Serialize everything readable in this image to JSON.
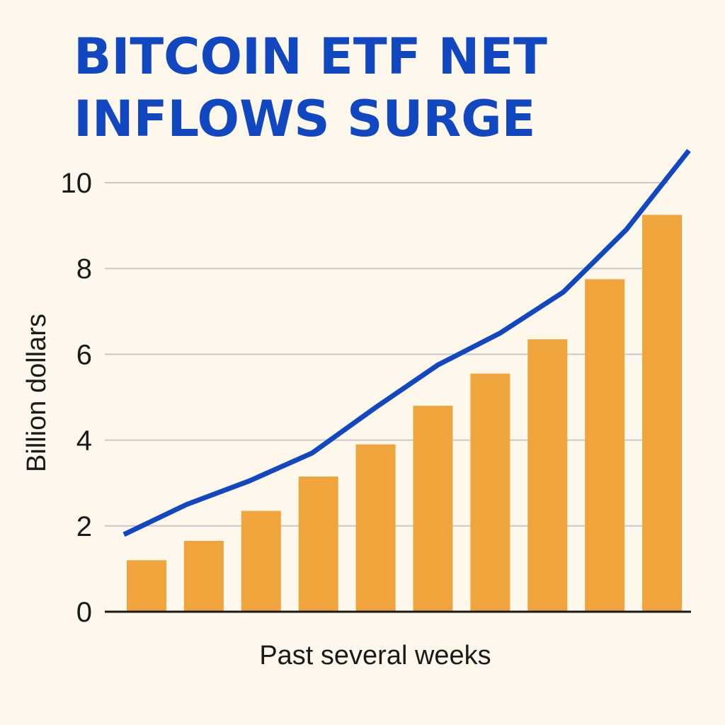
{
  "colors": {
    "background": "#FDF7EC",
    "title": "#1147C0",
    "bars": "#F0A43C",
    "line": "#1147C0",
    "grid": "#C9C9C9",
    "axis": "#1A1A1A"
  },
  "chart_data": {
    "type": "bar",
    "title_lines": [
      "BITCOIN ETF NET",
      "INFLOWS SURGE"
    ],
    "xlabel": "Past several weeks",
    "ylabel": "Billion dollars",
    "ylim": [
      0,
      10
    ],
    "yticks": [
      0,
      2,
      4,
      6,
      8,
      10
    ],
    "grid": true,
    "categories": [
      "",
      "",
      "",
      "",
      "",
      "",
      "",
      "",
      "",
      ""
    ],
    "series": [
      {
        "type": "bar",
        "values": [
          1.2,
          1.65,
          2.35,
          3.15,
          3.9,
          4.8,
          5.55,
          6.35,
          7.75,
          9.25
        ]
      },
      {
        "type": "line",
        "values": [
          1.8,
          2.5,
          3.05,
          3.7,
          4.75,
          5.75,
          6.5,
          7.45,
          8.9,
          10.75
        ]
      }
    ]
  }
}
